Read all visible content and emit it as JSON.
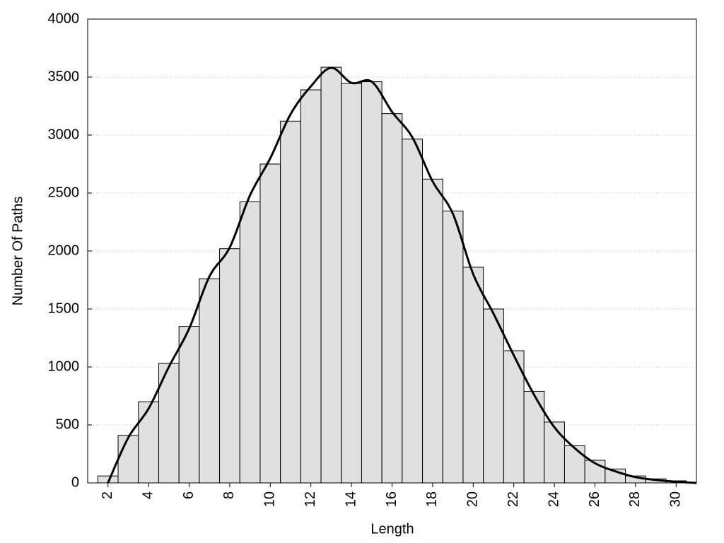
{
  "chart_data": {
    "type": "histogram",
    "xlabel": "Length",
    "ylabel": "Number Of Paths",
    "bins": [
      1.5,
      2.5,
      3.5,
      4.5,
      5.5,
      6.5,
      7.5,
      8.5,
      9.5,
      10.5,
      11.5,
      12.5,
      13.5,
      14.5,
      15.5,
      16.5,
      17.5,
      18.5,
      19.5,
      20.5,
      21.5,
      22.5,
      23.5,
      24.5,
      25.5,
      26.5,
      27.5,
      28.5,
      29.5,
      30.5
    ],
    "values": [
      60,
      410,
      700,
      1030,
      1350,
      1760,
      2020,
      2425,
      2750,
      3120,
      3390,
      3585,
      3445,
      3460,
      3185,
      2965,
      2620,
      2345,
      1860,
      1500,
      1140,
      790,
      525,
      320,
      195,
      120,
      60,
      35,
      18
    ],
    "color": "#e0e0e0",
    "curve": {
      "x": [
        2,
        3,
        4,
        5,
        6,
        7,
        8,
        9,
        10,
        11,
        12,
        13,
        14,
        15,
        16,
        17,
        18,
        19,
        20,
        21,
        22,
        23,
        24,
        25,
        26,
        27,
        28,
        29,
        30,
        31
      ],
      "y": [
        0,
        390,
        640,
        1000,
        1330,
        1780,
        2030,
        2480,
        2800,
        3180,
        3420,
        3580,
        3450,
        3460,
        3200,
        2980,
        2600,
        2320,
        1800,
        1460,
        1100,
        760,
        480,
        300,
        170,
        100,
        50,
        25,
        10,
        0
      ],
      "color": "#000000"
    },
    "xlim": [
      1,
      31
    ],
    "ylim": [
      0,
      4000
    ],
    "xticks": [
      2,
      4,
      6,
      8,
      10,
      12,
      14,
      16,
      18,
      20,
      22,
      24,
      26,
      28,
      30
    ],
    "yticks": [
      0,
      500,
      1000,
      1500,
      2000,
      2500,
      3000,
      3500,
      4000
    ],
    "grid": true
  }
}
